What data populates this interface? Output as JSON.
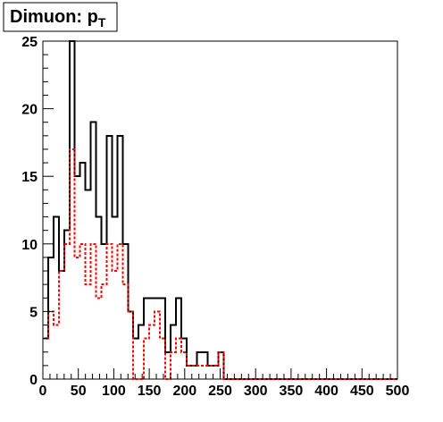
{
  "chart_data": {
    "type": "step",
    "title": "Dimuon: p",
    "title_subscript": "T",
    "xlabel": "",
    "ylabel": "",
    "xlim": [
      0,
      500
    ],
    "ylim": [
      0,
      25
    ],
    "bin_width": 7.5,
    "x_ticks": [
      0,
      50,
      100,
      150,
      200,
      250,
      300,
      350,
      400,
      450,
      500
    ],
    "y_ticks": [
      0,
      5,
      10,
      15,
      20,
      25
    ],
    "grid": false,
    "series": [
      {
        "style": "solid",
        "color": "#000000",
        "values": [
          3,
          9,
          12,
          8,
          11,
          25,
          15,
          16,
          14,
          19,
          12,
          10,
          18,
          12,
          18,
          10,
          5,
          3,
          4,
          6,
          6,
          6,
          6,
          2,
          4,
          6,
          3,
          1,
          1,
          2,
          2,
          1,
          1,
          2,
          0,
          0,
          0,
          0,
          0,
          0,
          0,
          0,
          0,
          0,
          0,
          0,
          0,
          0,
          0,
          0,
          0,
          0,
          0,
          0,
          0,
          0,
          0,
          0,
          0,
          0,
          0,
          0,
          0,
          0,
          0,
          0,
          0
        ]
      },
      {
        "style": "dashed",
        "color": "#ff0000",
        "values": [
          3,
          5,
          4,
          8,
          10,
          17,
          9,
          10,
          7,
          10,
          6,
          7,
          10,
          8,
          10,
          7,
          5,
          0,
          0,
          3,
          4,
          5,
          3,
          0,
          2,
          3,
          2,
          1,
          1,
          1,
          1,
          1,
          1,
          2,
          0,
          0,
          0,
          0,
          0,
          0,
          0,
          0,
          0,
          0,
          0,
          0,
          0,
          0,
          0,
          0,
          0,
          0,
          0,
          0,
          0,
          0,
          0,
          0,
          0,
          0,
          0,
          0,
          0,
          0,
          0,
          0,
          0
        ]
      }
    ]
  }
}
